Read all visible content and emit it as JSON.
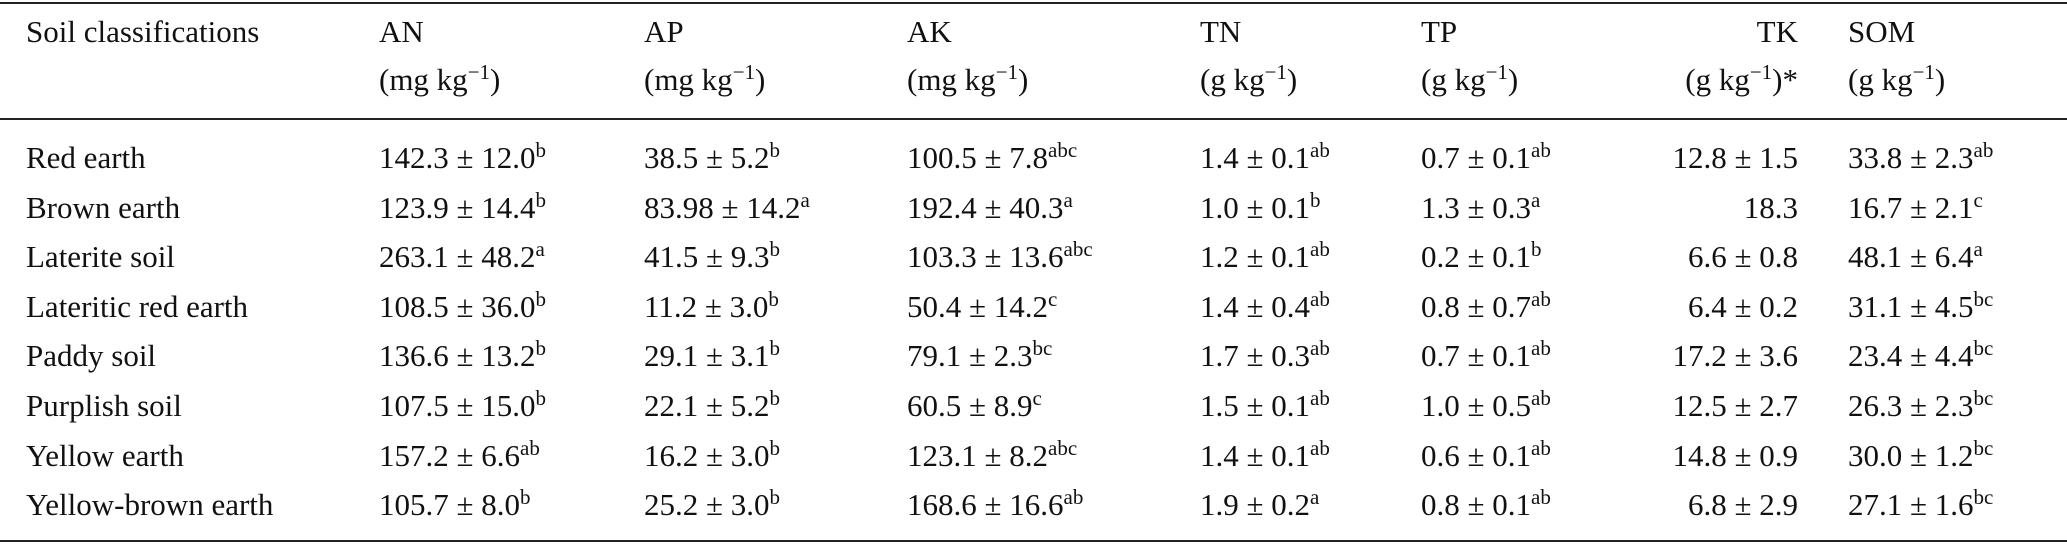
{
  "table": {
    "columns": [
      {
        "name": "Soil classifications"
      },
      {
        "name": "AN",
        "unit": {
          "pre": "(mg kg",
          "sup": "−1",
          "post": ")"
        }
      },
      {
        "name": "AP",
        "unit": {
          "pre": "(mg kg",
          "sup": "−1",
          "post": ")"
        }
      },
      {
        "name": "AK",
        "unit": {
          "pre": "(mg kg",
          "sup": "−1",
          "post": ")"
        }
      },
      {
        "name": "TN",
        "unit": {
          "pre": "(g kg",
          "sup": "−1",
          "post": ")"
        }
      },
      {
        "name": "TP",
        "unit": {
          "pre": "(g kg",
          "sup": "−1",
          "post": ")"
        }
      },
      {
        "name": "TK",
        "unit": {
          "pre": "(g kg",
          "sup": "−1",
          "post": ")*"
        }
      },
      {
        "name": "SOM",
        "unit": {
          "pre": "(g kg",
          "sup": "−1",
          "post": ")"
        }
      }
    ],
    "rows": [
      {
        "label": "Red earth",
        "cells": [
          {
            "text": "142.3 ± 12.0",
            "sup": "b"
          },
          {
            "text": "38.5 ± 5.2",
            "sup": "b"
          },
          {
            "text": "100.5 ± 7.8",
            "sup": "abc"
          },
          {
            "text": "1.4 ± 0.1",
            "sup": "ab"
          },
          {
            "text": "0.7 ± 0.1",
            "sup": "ab"
          },
          {
            "text": "12.8 ± 1.5"
          },
          {
            "text": "33.8 ± 2.3",
            "sup": "ab"
          }
        ]
      },
      {
        "label": "Brown earth",
        "cells": [
          {
            "text": "123.9 ± 14.4",
            "sup": "b"
          },
          {
            "text": "83.98 ± 14.2",
            "sup": "a"
          },
          {
            "text": "192.4 ± 40.3",
            "sup": "a"
          },
          {
            "text": "1.0 ± 0.1",
            "sup": "b"
          },
          {
            "text": "1.3 ± 0.3",
            "sup": "a"
          },
          {
            "text": "18.3"
          },
          {
            "text": "16.7 ± 2.1",
            "sup": "c"
          }
        ]
      },
      {
        "label": "Laterite soil",
        "cells": [
          {
            "text": "263.1 ± 48.2",
            "sup": "a"
          },
          {
            "text": "41.5 ± 9.3",
            "sup": "b"
          },
          {
            "text": "103.3 ± 13.6",
            "sup": "abc"
          },
          {
            "text": "1.2 ± 0.1",
            "sup": "ab"
          },
          {
            "text": "0.2 ± 0.1",
            "sup": "b"
          },
          {
            "text": "6.6 ± 0.8"
          },
          {
            "text": "48.1 ± 6.4",
            "sup": "a"
          }
        ]
      },
      {
        "label": "Lateritic red earth",
        "cells": [
          {
            "text": "108.5 ± 36.0",
            "sup": "b"
          },
          {
            "text": "11.2 ± 3.0",
            "sup": "b"
          },
          {
            "text": "50.4 ± 14.2",
            "sup": "c"
          },
          {
            "text": "1.4 ± 0.4",
            "sup": "ab"
          },
          {
            "text": "0.8 ± 0.7",
            "sup": "ab"
          },
          {
            "text": "6.4 ± 0.2"
          },
          {
            "text": "31.1 ± 4.5",
            "sup": "bc"
          }
        ]
      },
      {
        "label": "Paddy soil",
        "cells": [
          {
            "text": "136.6 ± 13.2",
            "sup": "b"
          },
          {
            "text": "29.1 ± 3.1",
            "sup": "b"
          },
          {
            "text": "79.1 ± 2.3",
            "sup": "bc"
          },
          {
            "text": "1.7 ± 0.3",
            "sup": "ab"
          },
          {
            "text": "0.7 ± 0.1",
            "sup": "ab"
          },
          {
            "text": "17.2 ± 3.6"
          },
          {
            "text": "23.4 ± 4.4",
            "sup": "bc"
          }
        ]
      },
      {
        "label": "Purplish soil",
        "cells": [
          {
            "text": "107.5 ± 15.0",
            "sup": "b"
          },
          {
            "text": "22.1 ± 5.2",
            "sup": "b"
          },
          {
            "text": "60.5 ± 8.9",
            "sup": "c"
          },
          {
            "text": "1.5 ± 0.1",
            "sup": "ab"
          },
          {
            "text": "1.0 ± 0.5",
            "sup": "ab"
          },
          {
            "text": "12.5 ± 2.7"
          },
          {
            "text": "26.3 ± 2.3",
            "sup": "bc"
          }
        ]
      },
      {
        "label": "Yellow earth",
        "cells": [
          {
            "text": "157.2 ± 6.6",
            "sup": "ab"
          },
          {
            "text": "16.2 ± 3.0",
            "sup": "b"
          },
          {
            "text": "123.1 ± 8.2",
            "sup": "abc"
          },
          {
            "text": "1.4 ± 0.1",
            "sup": "ab"
          },
          {
            "text": "0.6 ± 0.1",
            "sup": "ab"
          },
          {
            "text": "14.8 ± 0.9"
          },
          {
            "text": "30.0 ± 1.2",
            "sup": "bc"
          }
        ]
      },
      {
        "label": "Yellow-brown earth",
        "cells": [
          {
            "text": "105.7 ± 8.0",
            "sup": "b"
          },
          {
            "text": "25.2 ± 3.0",
            "sup": "b"
          },
          {
            "text": "168.6 ± 16.6",
            "sup": "ab"
          },
          {
            "text": "1.9 ± 0.2",
            "sup": "a"
          },
          {
            "text": "0.8 ± 0.1",
            "sup": "ab"
          },
          {
            "text": "6.8 ± 2.9"
          },
          {
            "text": "27.1 ± 1.6",
            "sup": "bc"
          }
        ]
      }
    ]
  }
}
